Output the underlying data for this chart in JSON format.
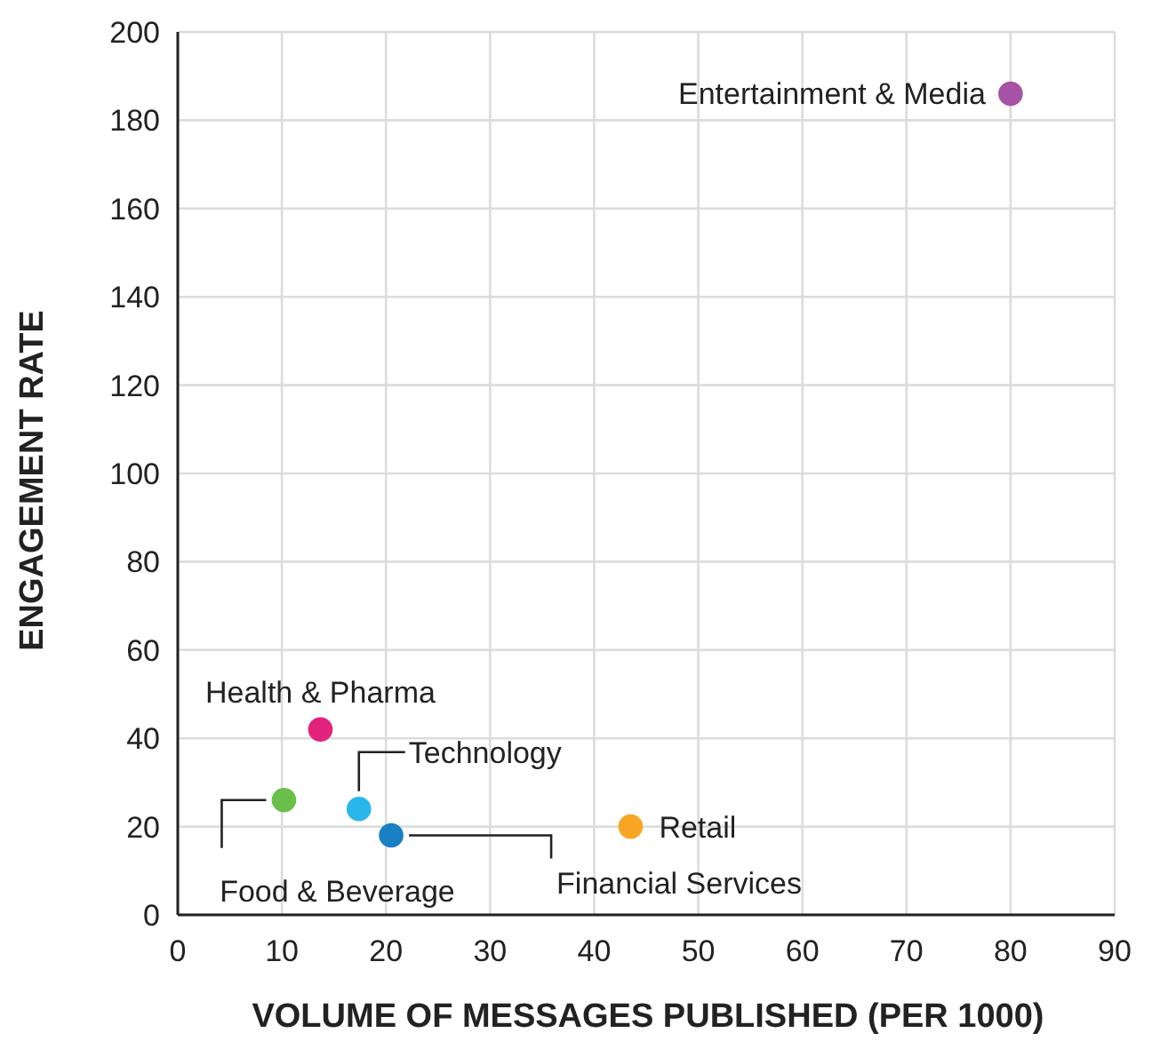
{
  "chart_data": {
    "type": "scatter",
    "xlabel": "VOLUME OF MESSAGES PUBLISHED (PER 1000)",
    "ylabel": "ENGAGEMENT RATE",
    "xlim": [
      0,
      90
    ],
    "xticks": [
      0,
      10,
      20,
      30,
      40,
      50,
      60,
      70,
      80,
      90
    ],
    "ylim": [
      0,
      200
    ],
    "yticks": [
      0,
      20,
      40,
      60,
      80,
      100,
      120,
      140,
      160,
      180,
      200
    ],
    "grid": true,
    "marker": "circle",
    "series": [
      {
        "name": "Entertainment & Media",
        "color": "#a653a6",
        "x": [
          80
        ],
        "values": [
          186
        ]
      },
      {
        "name": "Health & Pharma",
        "color": "#e2237b",
        "x": [
          13.7
        ],
        "values": [
          42
        ]
      },
      {
        "name": "Food & Beverage",
        "color": "#6abf4b",
        "x": [
          10.2
        ],
        "values": [
          26
        ]
      },
      {
        "name": "Technology",
        "color": "#29b6e8",
        "x": [
          17.4
        ],
        "values": [
          24
        ]
      },
      {
        "name": "Financial Services",
        "color": "#1a80c4",
        "x": [
          20.5
        ],
        "values": [
          18
        ]
      },
      {
        "name": "Retail",
        "color": "#f6a623",
        "x": [
          43.5
        ],
        "values": [
          20
        ]
      }
    ]
  }
}
